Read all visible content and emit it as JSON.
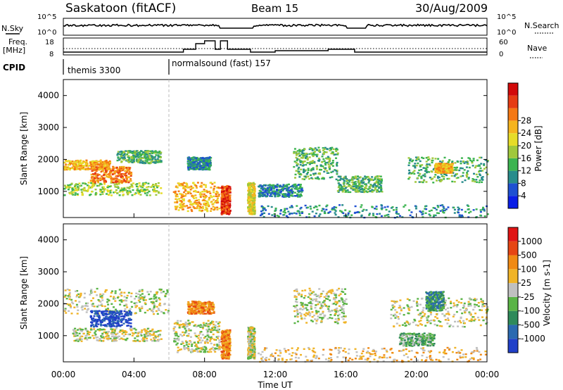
{
  "header": {
    "station": "Saskatoon (fitACF)",
    "beam": "Beam 15",
    "date": "30/Aug/2009"
  },
  "aux_panels": {
    "nsky": {
      "label": "N.Sky",
      "ticks": [
        "10^5",
        "10^0"
      ]
    },
    "nsearch": {
      "label": "N.Search",
      "ticks": [
        "10^5",
        "10^0"
      ]
    },
    "freq": {
      "label_lines": [
        "Freq.",
        "[MHz]"
      ],
      "ticks": [
        "18",
        "8"
      ]
    },
    "nave": {
      "label": "Nave",
      "ticks": [
        "60",
        "0"
      ]
    },
    "cpid": {
      "label": "CPID",
      "programs": [
        {
          "name": "themis 3300",
          "start_hour": 0
        },
        {
          "name": "normalsound (fast) 157",
          "start_hour": 6.6
        }
      ]
    }
  },
  "chart_data": [
    {
      "type": "heatmap",
      "panel": "power",
      "ylabel": "Slant Range [km]",
      "yticks": [
        1000,
        2000,
        3000,
        4000
      ],
      "ylim": [
        180,
        4500
      ],
      "xlim": [
        0,
        24
      ],
      "colorbar": {
        "label": "Power [dB]",
        "ticks": [
          4,
          8,
          12,
          16,
          20,
          24,
          28
        ]
      },
      "colors": [
        "#0a1ee6",
        "#1e50d2",
        "#288c8c",
        "#3cb450",
        "#a0c83c",
        "#e6dc28",
        "#f5b41e",
        "#f57814",
        "#e63c14",
        "#d20a0a"
      ],
      "echo_regions": [
        {
          "h0": 0.0,
          "h1": 2.6,
          "r0": 1700,
          "r1": 2000,
          "level": 6
        },
        {
          "h0": 0.0,
          "h1": 5.5,
          "r0": 900,
          "r1": 1300,
          "level": 4
        },
        {
          "h0": 1.5,
          "h1": 3.8,
          "r0": 1300,
          "r1": 1800,
          "level": 7
        },
        {
          "h0": 3.0,
          "h1": 5.5,
          "r0": 1900,
          "r1": 2300,
          "level": 3
        },
        {
          "h0": 6.2,
          "h1": 8.8,
          "r0": 400,
          "r1": 1300,
          "level": 6
        },
        {
          "h0": 7.0,
          "h1": 8.3,
          "r0": 1700,
          "r1": 2100,
          "level": 2
        },
        {
          "h0": 8.9,
          "h1": 9.4,
          "r0": 300,
          "r1": 1200,
          "level": 8
        },
        {
          "h0": 10.4,
          "h1": 10.8,
          "r0": 300,
          "r1": 1300,
          "level": 5
        },
        {
          "h0": 11.0,
          "h1": 13.5,
          "r0": 850,
          "r1": 1250,
          "level": 2
        },
        {
          "h0": 13.0,
          "h1": 15.5,
          "r0": 1400,
          "r1": 2400,
          "level": 3
        },
        {
          "h0": 15.5,
          "h1": 18.0,
          "r0": 1000,
          "r1": 1500,
          "level": 3
        },
        {
          "h0": 11.0,
          "h1": 24.0,
          "r0": 200,
          "r1": 600,
          "level": 2
        },
        {
          "h0": 19.5,
          "h1": 24.0,
          "r0": 1300,
          "r1": 2100,
          "level": 3
        },
        {
          "h0": 21.0,
          "h1": 22.0,
          "r0": 1600,
          "r1": 1900,
          "level": 6
        }
      ]
    },
    {
      "type": "heatmap",
      "panel": "velocity",
      "ylabel": "Slant Range [km]",
      "yticks": [
        1000,
        2000,
        3000,
        4000
      ],
      "ylim": [
        180,
        4500
      ],
      "xlim": [
        0,
        24
      ],
      "colorbar": {
        "label": "Velocity [m s-1]",
        "ticks": [
          "1000",
          "500",
          "100",
          "25",
          "-25",
          "-100",
          "-500",
          "-1000"
        ]
      },
      "colors": [
        "#2040c8",
        "#2a6ab0",
        "#2e8a5a",
        "#5ab446",
        "#c0c0c0",
        "#f0b428",
        "#f08a14",
        "#e64614",
        "#e01414"
      ],
      "echo_regions": [
        {
          "h0": 0.0,
          "h1": 6.0,
          "r0": 1700,
          "r1": 2500,
          "level": 4
        },
        {
          "h0": 1.5,
          "h1": 3.8,
          "r0": 1300,
          "r1": 1800,
          "level": 0
        },
        {
          "h0": 0.5,
          "h1": 5.5,
          "r0": 850,
          "r1": 1250,
          "level": 4
        },
        {
          "h0": 6.2,
          "h1": 8.8,
          "r0": 500,
          "r1": 1500,
          "level": 4
        },
        {
          "h0": 7.0,
          "h1": 8.5,
          "r0": 1700,
          "r1": 2100,
          "level": 6
        },
        {
          "h0": 8.9,
          "h1": 9.4,
          "r0": 300,
          "r1": 1200,
          "level": 6
        },
        {
          "h0": 10.4,
          "h1": 10.8,
          "r0": 300,
          "r1": 1300,
          "level": 4
        },
        {
          "h0": 11.0,
          "h1": 24.0,
          "r0": 200,
          "r1": 650,
          "level": 5
        },
        {
          "h0": 13.0,
          "h1": 16.0,
          "r0": 1400,
          "r1": 2500,
          "level": 4
        },
        {
          "h0": 18.5,
          "h1": 24.0,
          "r0": 1300,
          "r1": 2200,
          "level": 4
        },
        {
          "h0": 20.5,
          "h1": 21.5,
          "r0": 1800,
          "r1": 2400,
          "level": 2
        },
        {
          "h0": 19.0,
          "h1": 21.0,
          "r0": 700,
          "r1": 1100,
          "level": 3
        }
      ]
    }
  ],
  "xaxis": {
    "ticks": [
      "00:00",
      "04:00",
      "08:00",
      "12:00",
      "16:00",
      "20:00",
      "00:00"
    ],
    "label": "Time UT"
  }
}
